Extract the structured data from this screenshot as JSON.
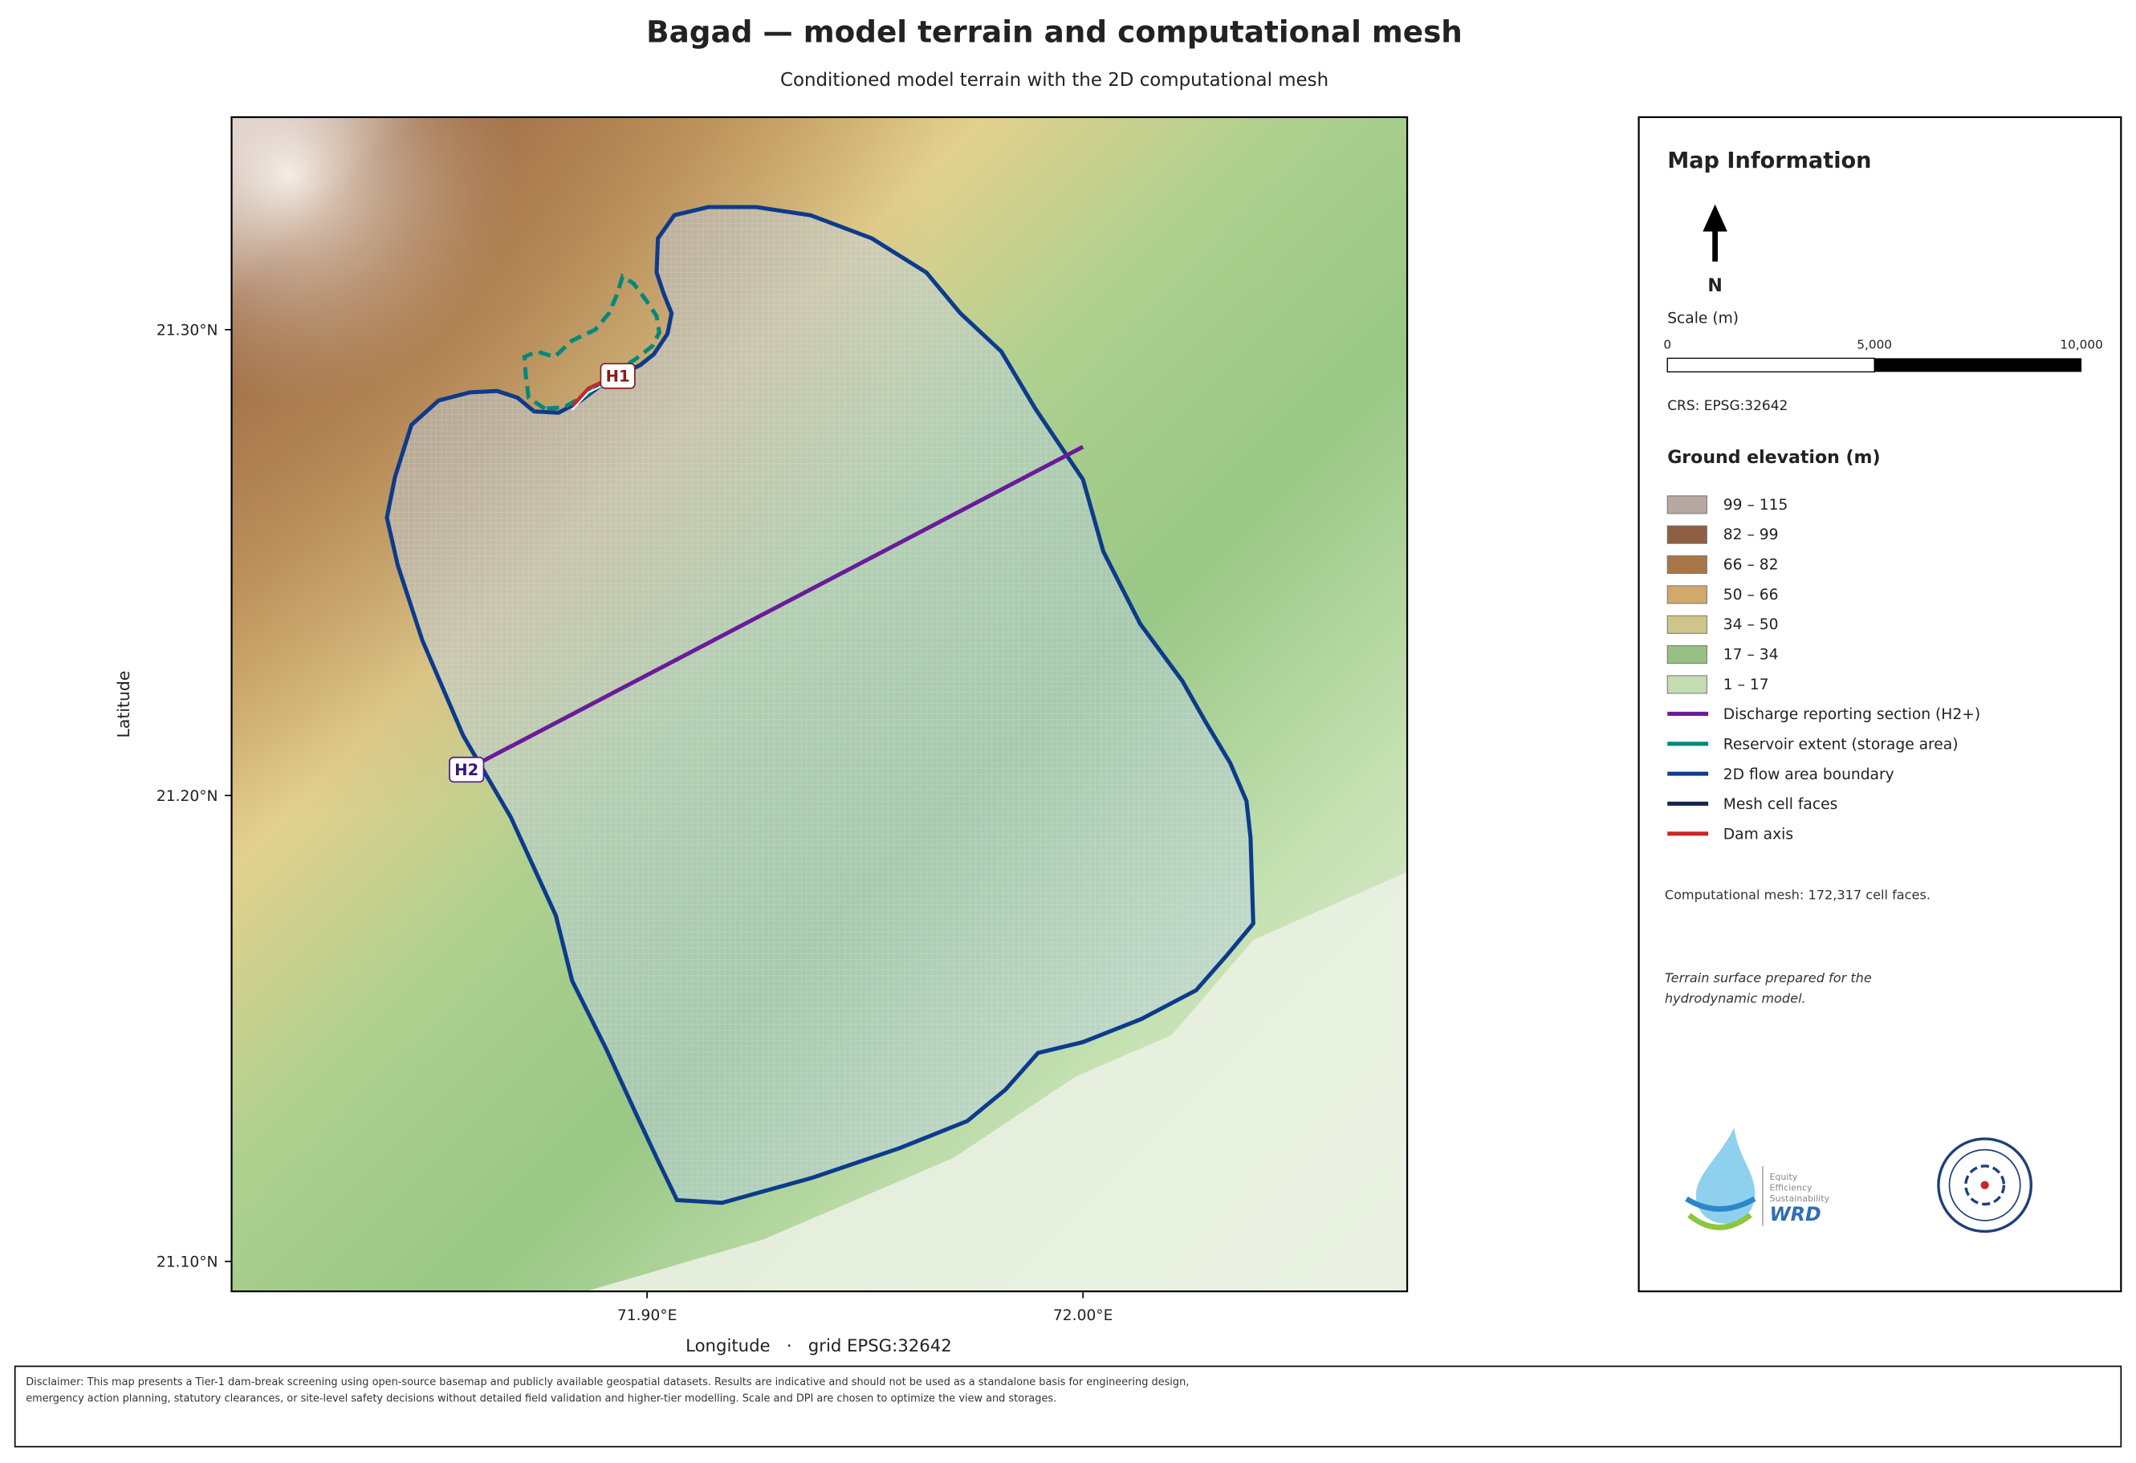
{
  "header": {
    "title": "Bagad — model terrain and computational mesh",
    "subtitle": "Conditioned model terrain with the 2D computational mesh"
  },
  "map": {
    "y_axis_label": "Latitude",
    "x_axis_label": "Longitude   ·   grid EPSG:32642",
    "yticks": [
      "21.30°N",
      "21.20°N",
      "21.10°N"
    ],
    "xticks": [
      "71.90°E",
      "72.00°E"
    ],
    "labels": [
      "H1",
      "H2"
    ]
  },
  "panel": {
    "title": "Map Information",
    "north": "N",
    "scale_title": "Scale (m)",
    "scale_ticks": [
      "0",
      "5,000",
      "10,000"
    ],
    "crs": "CRS: EPSG:32642",
    "legend_title": "Ground elevation (m)",
    "elevation_classes": [
      {
        "label": "99 – 115",
        "color": "#b8a9a0"
      },
      {
        "label": "82 – 99",
        "color": "#8f5e43"
      },
      {
        "label": "66 – 82",
        "color": "#a87748"
      },
      {
        "label": "50 – 66",
        "color": "#d2a86b"
      },
      {
        "label": "34 – 50",
        "color": "#cec58a"
      },
      {
        "label": "17 – 34",
        "color": "#97c085"
      },
      {
        "label": "1 – 17",
        "color": "#c3ddb1"
      }
    ],
    "line_items": [
      {
        "label": "Discharge reporting section (H2+)",
        "color": "#6a1b9a"
      },
      {
        "label": "Reservoir extent (storage area)",
        "color": "#00897b"
      },
      {
        "label": "2D flow area boundary",
        "color": "#0d3b8c"
      },
      {
        "label": "Mesh cell faces",
        "color": "#14284b"
      },
      {
        "label": "Dam axis",
        "color": "#c62828"
      }
    ],
    "mesh_note": "Computational mesh: 172,317 cell faces.",
    "terrain_note": "Terrain surface prepared for the hydrodynamic model.",
    "logo_text": [
      "Equity",
      "Efficiency",
      "Sustainability",
      "WRD"
    ]
  },
  "disclaimer": "Disclaimer: This map presents a Tier-1 dam-break screening using open-source basemap and publicly available geospatial datasets. Results are indicative and should not be used as a standalone basis for engineering design, emergency action planning, statutory clearances, or site-level safety decisions without detailed field validation and higher-tier modelling. Scale and DPI are chosen to optimize the view and storages."
}
